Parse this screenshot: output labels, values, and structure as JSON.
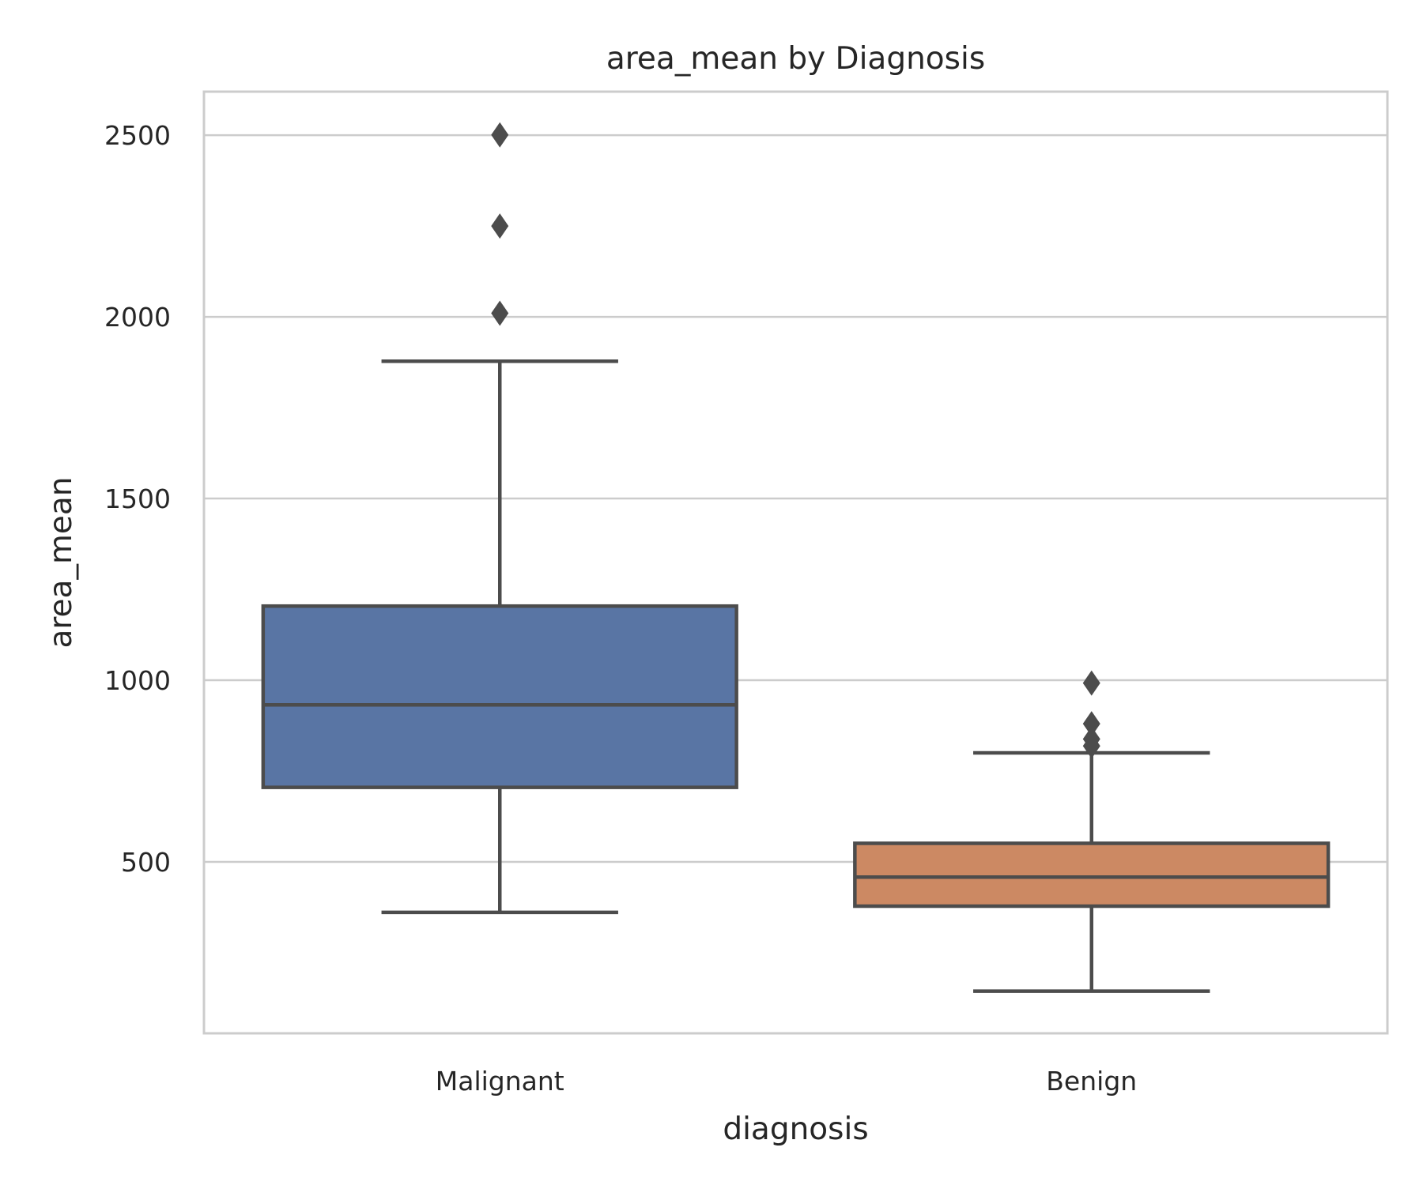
{
  "chart_data": {
    "type": "box",
    "title": "area_mean by Diagnosis",
    "xlabel": "diagnosis",
    "ylabel": "area_mean",
    "categories": [
      "Malignant",
      "Benign"
    ],
    "ylim": [
      28,
      2620
    ],
    "yticks": [
      500,
      1000,
      1500,
      2000,
      2500
    ],
    "grid": "horizontal",
    "series": [
      {
        "category": "Malignant",
        "color": "#5975a4",
        "whisker_low": 361,
        "q1": 705,
        "median": 932,
        "q3": 1204,
        "whisker_high": 1878,
        "outliers": [
          2010,
          2250,
          2501
        ]
      },
      {
        "category": "Benign",
        "color": "#cc8963",
        "whisker_low": 144,
        "q1": 378,
        "median": 458,
        "q3": 551,
        "whisker_high": 800,
        "outliers": [
          819,
          838,
          880,
          992
        ]
      }
    ],
    "colors": {
      "box_edge": "#4c4c4c",
      "grid": "#cccccc",
      "frame": "#cccccc"
    }
  }
}
